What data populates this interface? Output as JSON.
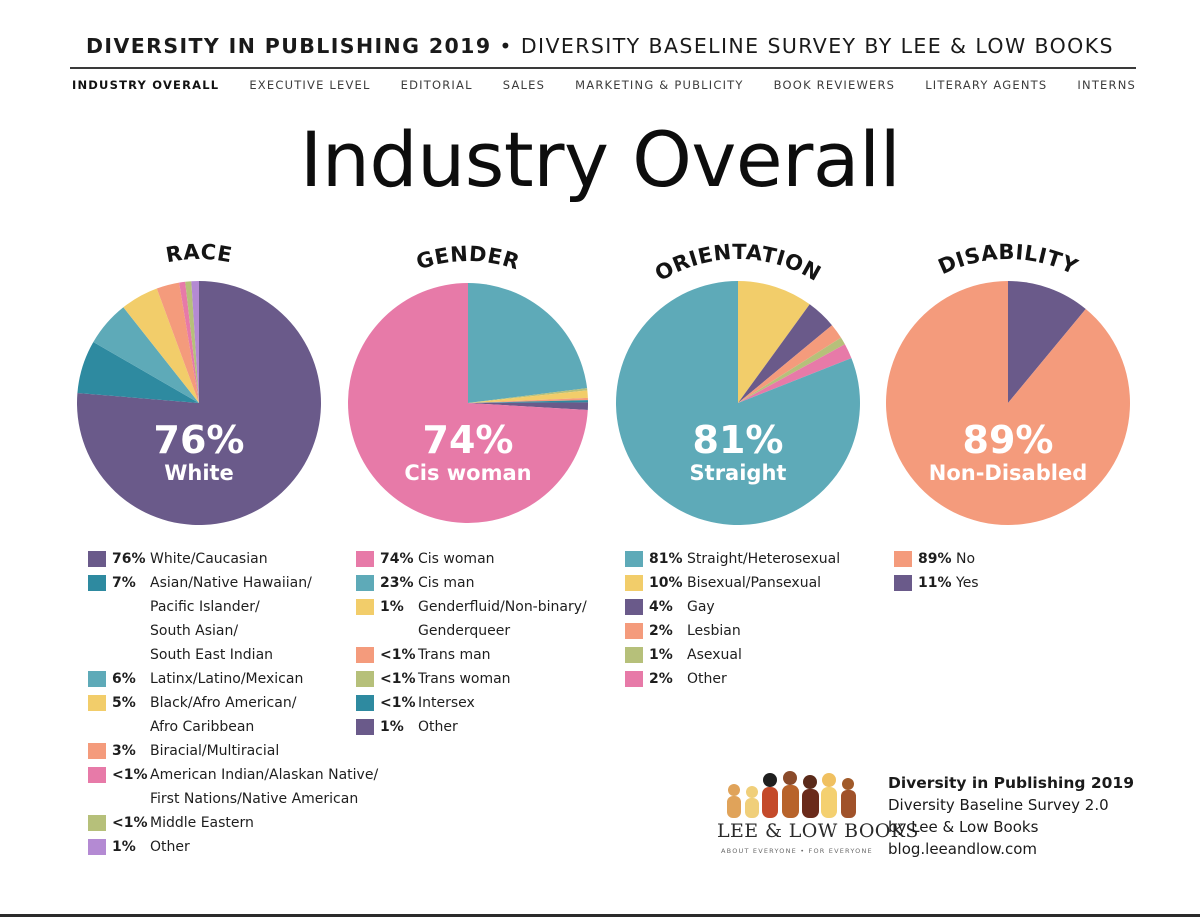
{
  "header": {
    "title_bold": "DIVERSITY IN PUBLISHING 2019",
    "separator": " • ",
    "title_rest": "DIVERSITY BASELINE SURVEY BY LEE & LOW BOOKS"
  },
  "nav": {
    "tabs": [
      {
        "label": "INDUSTRY OVERALL",
        "active": true
      },
      {
        "label": "EXECUTIVE LEVEL",
        "active": false
      },
      {
        "label": "EDITORIAL",
        "active": false
      },
      {
        "label": "SALES",
        "active": false
      },
      {
        "label": "MARKETING & PUBLICITY",
        "active": false
      },
      {
        "label": "BOOK REVIEWERS",
        "active": false
      },
      {
        "label": "LITERARY AGENTS",
        "active": false
      },
      {
        "label": "INTERNS",
        "active": false
      }
    ]
  },
  "main_title": "Industry Overall",
  "colors": {
    "purple": "#6a5a8a",
    "teal_dark": "#2e8aa0",
    "teal": "#5eaab8",
    "yellow": "#f2cd6a",
    "salmon": "#f49b7c",
    "pink": "#e77aa8",
    "olive": "#b6c07a",
    "lilac": "#b48ad3",
    "ink": "#1a1a1a"
  },
  "chart_data": [
    {
      "type": "pie",
      "title": "RACE",
      "center_value": "76%",
      "center_label": "White",
      "slices": [
        {
          "label": "White/Caucasian",
          "value": 76,
          "color": "#6a5a8a"
        },
        {
          "label": "Asian/Native Hawaiian/Pacific Islander/South Asian/South East Indian",
          "value": 7,
          "color": "#2e8aa0"
        },
        {
          "label": "Latinx/Latino/Mexican",
          "value": 6,
          "color": "#5eaab8"
        },
        {
          "label": "Black/Afro American/Afro Caribbean",
          "value": 5,
          "color": "#f2cd6a"
        },
        {
          "label": "Biracial/Multiracial",
          "value": 3,
          "color": "#f49b7c"
        },
        {
          "label": "American Indian/Alaskan Native/First Nations/Native American",
          "value": 0.8,
          "color": "#e77aa8"
        },
        {
          "label": "Middle Eastern",
          "value": 0.8,
          "color": "#b6c07a"
        },
        {
          "label": "Other",
          "value": 1,
          "color": "#b48ad3"
        }
      ],
      "legend": [
        {
          "pct": "76%",
          "label": "White/Caucasian",
          "color": "#6a5a8a"
        },
        {
          "pct": "7%",
          "label": "Asian/Native Hawaiian/",
          "cont": [
            "Pacific Islander/",
            "South Asian/",
            "South East Indian"
          ],
          "color": "#2e8aa0"
        },
        {
          "pct": "6%",
          "label": "Latinx/Latino/Mexican",
          "color": "#5eaab8"
        },
        {
          "pct": "5%",
          "label": "Black/Afro American/",
          "cont": [
            "Afro Caribbean"
          ],
          "color": "#f2cd6a"
        },
        {
          "pct": "3%",
          "label": "Biracial/Multiracial",
          "color": "#f49b7c"
        },
        {
          "pct": "<1%",
          "label": "American Indian/Alaskan Native/",
          "cont": [
            "First Nations/Native American"
          ],
          "color": "#e77aa8"
        },
        {
          "pct": "<1%",
          "label": "Middle Eastern",
          "color": "#b6c07a"
        },
        {
          "pct": "1%",
          "label": "Other",
          "color": "#b48ad3"
        }
      ]
    },
    {
      "type": "pie",
      "title": "GENDER",
      "center_value": "74%",
      "center_label": "Cis woman",
      "slices": [
        {
          "label": "Cis man",
          "value": 23,
          "color": "#5eaab8"
        },
        {
          "label": "Trans woman",
          "value": 0.3,
          "color": "#b6c07a"
        },
        {
          "label": "Genderfluid/Non-binary/Genderqueer",
          "value": 1,
          "color": "#f2cd6a"
        },
        {
          "label": "Trans man",
          "value": 0.3,
          "color": "#f49b7c"
        },
        {
          "label": "Intersex",
          "value": 0.3,
          "color": "#2e8aa0"
        },
        {
          "label": "Other",
          "value": 1,
          "color": "#6a5a8a"
        },
        {
          "label": "Cis woman",
          "value": 74,
          "color": "#e77aa8"
        }
      ],
      "legend": [
        {
          "pct": "74%",
          "label": "Cis woman",
          "color": "#e77aa8"
        },
        {
          "pct": "23%",
          "label": "Cis man",
          "color": "#5eaab8"
        },
        {
          "pct": "1%",
          "label": "Genderfluid/Non-binary/",
          "cont": [
            "Genderqueer"
          ],
          "color": "#f2cd6a"
        },
        {
          "pct": "<1%",
          "label": "Trans man",
          "color": "#f49b7c"
        },
        {
          "pct": "<1%",
          "label": "Trans woman",
          "color": "#b6c07a"
        },
        {
          "pct": "<1%",
          "label": "Intersex",
          "color": "#2e8aa0"
        },
        {
          "pct": "1%",
          "label": "Other",
          "color": "#6a5a8a"
        }
      ]
    },
    {
      "type": "pie",
      "title": "ORIENTATION",
      "center_value": "81%",
      "center_label": "Straight",
      "slices": [
        {
          "label": "Bisexual/Pansexual",
          "value": 10,
          "color": "#f2cd6a"
        },
        {
          "label": "Gay",
          "value": 4,
          "color": "#6a5a8a"
        },
        {
          "label": "Lesbian",
          "value": 2,
          "color": "#f49b7c"
        },
        {
          "label": "Asexual",
          "value": 1,
          "color": "#b6c07a"
        },
        {
          "label": "Other",
          "value": 2,
          "color": "#e77aa8"
        },
        {
          "label": "Straight/Heterosexual",
          "value": 81,
          "color": "#5eaab8"
        }
      ],
      "legend": [
        {
          "pct": "81%",
          "label": "Straight/Heterosexual",
          "color": "#5eaab8"
        },
        {
          "pct": "10%",
          "label": "Bisexual/Pansexual",
          "color": "#f2cd6a"
        },
        {
          "pct": "4%",
          "label": "Gay",
          "color": "#6a5a8a"
        },
        {
          "pct": "2%",
          "label": "Lesbian",
          "color": "#f49b7c"
        },
        {
          "pct": "1%",
          "label": "Asexual",
          "color": "#b6c07a"
        },
        {
          "pct": "2%",
          "label": "Other",
          "color": "#e77aa8"
        }
      ]
    },
    {
      "type": "pie",
      "title": "DISABILITY",
      "center_value": "89%",
      "center_label": "Non-Disabled",
      "slices": [
        {
          "label": "Yes",
          "value": 11,
          "color": "#6a5a8a"
        },
        {
          "label": "No",
          "value": 89,
          "color": "#f49b7c"
        }
      ],
      "legend": [
        {
          "pct": "89%",
          "label": "No",
          "color": "#f49b7c"
        },
        {
          "pct": "11%",
          "label": "Yes",
          "color": "#6a5a8a"
        }
      ]
    }
  ],
  "branding": {
    "line1": "Diversity in Publishing 2019",
    "line2": "Diversity Baseline Survey 2.0",
    "line3": "by Lee & Low Books",
    "line4": "blog.leeandlow.com",
    "logo_name": "LEE & LOW BOOKS",
    "logo_tagline": "ABOUT EVERYONE • FOR EVERYONE"
  }
}
